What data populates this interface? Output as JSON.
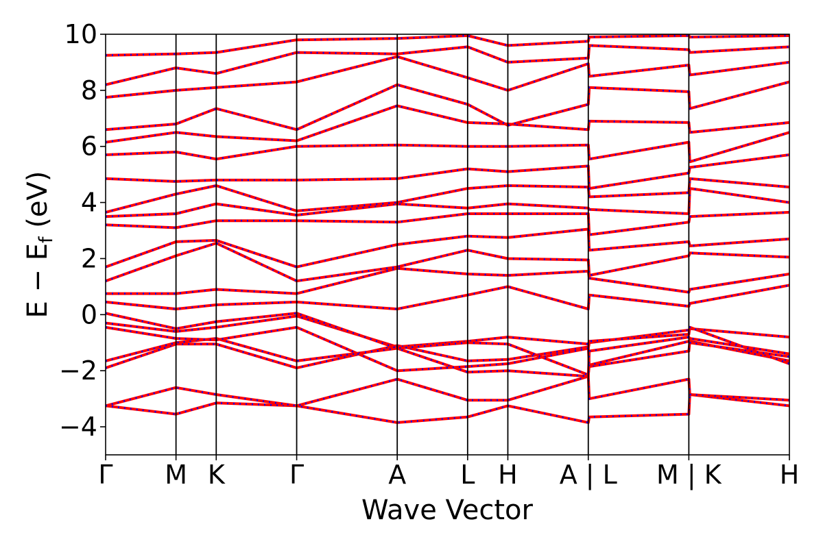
{
  "chart_data": {
    "type": "line",
    "title": "",
    "xlabel": "Wave Vector",
    "ylabel_parts": [
      "E − E",
      "f",
      " (eV)"
    ],
    "ylim": [
      -5,
      10
    ],
    "yticks": [
      -4,
      -2,
      0,
      2,
      4,
      6,
      8,
      10
    ],
    "ytick_labels": [
      "−4",
      "−2",
      "0",
      "2",
      "4",
      "6",
      "8",
      "10"
    ],
    "grid": false,
    "legend": "none",
    "colors": {
      "series_a": "#ff0000",
      "series_b": "#0000ff",
      "path_lines": "#000000"
    },
    "kpath": [
      {
        "label": "Γ",
        "x": 0.0
      },
      {
        "label": "M",
        "x": 0.7
      },
      {
        "label": "K",
        "x": 1.1
      },
      {
        "label": "Γ",
        "x": 1.9
      },
      {
        "label": "A",
        "x": 2.9
      },
      {
        "label": "L",
        "x": 3.6
      },
      {
        "label": "H",
        "x": 4.0
      },
      {
        "label": "A | L",
        "x": 4.8
      },
      {
        "label": "M | K",
        "x": 5.8
      },
      {
        "label": "H",
        "x": 6.8
      }
    ],
    "xlim": [
      0.0,
      6.8
    ],
    "series": [
      {
        "style": "solid-red"
      },
      {
        "style": "dotted-blue"
      }
    ],
    "bands": [
      {
        "x": [
          0.0,
          0.7,
          1.1,
          1.9,
          2.9,
          3.6,
          4.0,
          4.8,
          4.81,
          5.8,
          5.81,
          6.8
        ],
        "y": [
          -3.25,
          -3.55,
          -3.15,
          -3.25,
          -3.85,
          -3.65,
          -3.25,
          -3.85,
          -3.65,
          -3.55,
          -2.85,
          -3.25
        ]
      },
      {
        "x": [
          0.0,
          0.7,
          1.1,
          1.9,
          2.9,
          3.6,
          4.0,
          4.8,
          4.81,
          5.8,
          5.81,
          6.8
        ],
        "y": [
          -3.25,
          -2.6,
          -2.85,
          -3.25,
          -2.3,
          -3.05,
          -3.05,
          -2.2,
          -3.0,
          -2.3,
          -2.85,
          -3.05
        ]
      },
      {
        "x": [
          0.0,
          0.7,
          1.1,
          1.9,
          2.9,
          3.6,
          4.0,
          4.8,
          4.81,
          5.8,
          5.81,
          6.8
        ],
        "y": [
          -1.9,
          -1.05,
          -1.05,
          -1.9,
          -1.1,
          -1.65,
          -1.6,
          -1.15,
          -1.85,
          -1.3,
          -0.95,
          -1.65
        ]
      },
      {
        "x": [
          0.0,
          0.7,
          1.1,
          1.9,
          2.9,
          3.6,
          4.0,
          4.8,
          4.81,
          5.8,
          5.81,
          6.8
        ],
        "y": [
          -1.65,
          -1.0,
          -0.85,
          -1.65,
          -1.2,
          -2.05,
          -2.0,
          -2.2,
          -1.3,
          -0.8,
          -0.85,
          -1.4
        ]
      },
      {
        "x": [
          0.0,
          0.7,
          1.1,
          1.9,
          2.9,
          3.6,
          4.0,
          4.8,
          4.81,
          5.8,
          5.81,
          6.8
        ],
        "y": [
          -0.45,
          -0.85,
          -0.9,
          -0.45,
          -2.0,
          -1.85,
          -1.75,
          -1.2,
          -1.0,
          -0.55,
          -0.5,
          -0.8
        ]
      },
      {
        "x": [
          0.0,
          0.7,
          1.1,
          1.9,
          2.9,
          3.6,
          4.0,
          4.8,
          4.81,
          5.8,
          5.81,
          6.8
        ],
        "y": [
          -0.3,
          -0.6,
          -0.45,
          -0.05,
          -1.15,
          -0.95,
          -0.8,
          -1.05,
          -0.95,
          -0.7,
          -0.45,
          -1.75
        ]
      },
      {
        "x": [
          0.0,
          0.7,
          1.1,
          1.9,
          2.9,
          3.6,
          4.0,
          4.8,
          4.81,
          5.8,
          5.81,
          6.8
        ],
        "y": [
          0.05,
          -0.5,
          -0.25,
          0.05,
          -1.2,
          -1.0,
          -1.05,
          -2.15,
          -1.8,
          -0.95,
          -1.0,
          -1.5
        ]
      },
      {
        "x": [
          0.0,
          0.7,
          1.1,
          1.9,
          2.9,
          3.6,
          4.0,
          4.8,
          4.81,
          5.8,
          5.81,
          6.8
        ],
        "y": [
          0.45,
          0.2,
          0.35,
          0.45,
          0.2,
          0.7,
          1.0,
          0.2,
          0.7,
          0.3,
          0.4,
          1.05
        ]
      },
      {
        "x": [
          0.0,
          0.7,
          1.1,
          1.9,
          2.9,
          3.6,
          4.0,
          4.8,
          4.81,
          5.8,
          5.81,
          6.8
        ],
        "y": [
          0.75,
          0.75,
          0.9,
          0.75,
          1.65,
          1.45,
          1.4,
          1.55,
          1.3,
          0.8,
          0.9,
          1.45
        ]
      },
      {
        "x": [
          0.0,
          0.7,
          1.1,
          1.9,
          2.9,
          3.6,
          4.0,
          4.8,
          4.81,
          5.8,
          5.81,
          6.8
        ],
        "y": [
          1.2,
          2.1,
          2.55,
          1.2,
          1.7,
          2.3,
          2.0,
          1.95,
          1.4,
          2.1,
          2.2,
          2.05
        ]
      },
      {
        "x": [
          0.0,
          0.7,
          1.1,
          1.9,
          2.9,
          3.6,
          4.0,
          4.8,
          4.81,
          5.8,
          5.81,
          6.8
        ],
        "y": [
          1.7,
          2.6,
          2.65,
          1.7,
          2.5,
          2.8,
          2.75,
          3.05,
          2.3,
          2.6,
          2.45,
          2.7
        ]
      },
      {
        "x": [
          0.0,
          0.7,
          1.1,
          1.9,
          2.9,
          3.6,
          4.0,
          4.8,
          4.81,
          5.8,
          5.81,
          6.8
        ],
        "y": [
          3.2,
          3.1,
          3.35,
          3.35,
          3.3,
          3.6,
          3.6,
          3.6,
          2.85,
          3.3,
          3.5,
          3.65
        ]
      },
      {
        "x": [
          0.0,
          0.7,
          1.1,
          1.9,
          2.9,
          3.6,
          4.0,
          4.8,
          4.81,
          5.8,
          5.81,
          6.8
        ],
        "y": [
          3.5,
          3.6,
          3.95,
          3.55,
          3.95,
          3.8,
          3.95,
          3.8,
          3.75,
          3.6,
          4.5,
          4.0
        ]
      },
      {
        "x": [
          0.0,
          0.7,
          1.1,
          1.9,
          2.9,
          3.6,
          4.0,
          4.8,
          4.81,
          5.8,
          5.81,
          6.8
        ],
        "y": [
          3.65,
          4.3,
          4.6,
          3.7,
          4.0,
          4.5,
          4.6,
          4.55,
          4.2,
          4.35,
          4.85,
          4.55
        ]
      },
      {
        "x": [
          0.0,
          0.7,
          1.1,
          1.9,
          2.9,
          3.6,
          4.0,
          4.8,
          4.81,
          5.8,
          5.81,
          6.8
        ],
        "y": [
          4.85,
          4.75,
          4.8,
          4.8,
          4.85,
          5.2,
          5.1,
          5.3,
          4.5,
          5.05,
          5.25,
          5.7
        ]
      },
      {
        "x": [
          0.0,
          0.7,
          1.1,
          1.9,
          2.9,
          3.6,
          4.0,
          4.8,
          4.81,
          5.8,
          5.81,
          6.8
        ],
        "y": [
          5.7,
          5.8,
          5.55,
          6.0,
          6.05,
          6.0,
          6.0,
          6.05,
          5.55,
          6.15,
          5.45,
          6.5
        ]
      },
      {
        "x": [
          0.0,
          0.7,
          1.1,
          1.9,
          2.9,
          3.6,
          4.0,
          4.8,
          4.81,
          5.8,
          5.81,
          6.8
        ],
        "y": [
          6.15,
          6.5,
          6.35,
          6.2,
          7.45,
          6.85,
          6.8,
          6.6,
          6.9,
          6.85,
          6.5,
          6.85
        ]
      },
      {
        "x": [
          0.0,
          0.7,
          1.1,
          1.9,
          2.9,
          3.6,
          4.0,
          4.8,
          4.81,
          5.8,
          5.81,
          6.8
        ],
        "y": [
          6.6,
          6.8,
          7.35,
          6.6,
          8.2,
          7.5,
          6.75,
          7.5,
          8.1,
          7.95,
          7.35,
          8.3
        ]
      },
      {
        "x": [
          0.0,
          0.7,
          1.1,
          1.9,
          2.9,
          3.6,
          4.0,
          4.8,
          4.81,
          5.8,
          5.81,
          6.8
        ],
        "y": [
          7.75,
          8.0,
          8.1,
          8.3,
          9.2,
          8.45,
          8.0,
          8.95,
          8.5,
          8.9,
          8.55,
          9.0
        ]
      },
      {
        "x": [
          0.0,
          0.7,
          1.1,
          1.9,
          2.9,
          3.6,
          4.0,
          4.8,
          4.81,
          5.8,
          5.81,
          6.8
        ],
        "y": [
          8.2,
          8.8,
          8.6,
          9.35,
          9.3,
          9.55,
          9.0,
          9.15,
          9.6,
          9.45,
          9.35,
          9.55
        ]
      },
      {
        "x": [
          0.0,
          0.7,
          1.1,
          1.9,
          2.9,
          3.6,
          4.0,
          4.8,
          4.81,
          5.8,
          5.81,
          6.8
        ],
        "y": [
          9.25,
          9.3,
          9.35,
          9.8,
          9.85,
          9.95,
          9.6,
          9.75,
          9.9,
          9.95,
          9.9,
          9.95
        ]
      }
    ]
  }
}
